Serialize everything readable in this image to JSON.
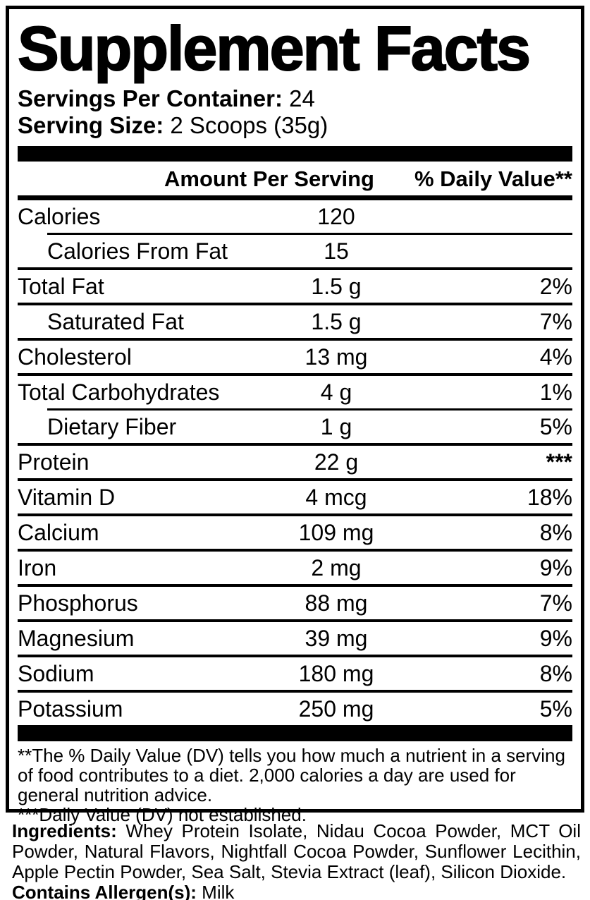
{
  "label": {
    "title": "Supplement Facts",
    "servings_per_container_label": "Servings Per Container:",
    "servings_per_container_value": "24",
    "serving_size_label": "Serving Size:",
    "serving_size_value": "2 Scoops (35g)",
    "header": {
      "amount": "Amount Per Serving",
      "daily_value": "% Daily Value**"
    },
    "rows": [
      {
        "name": "Calories",
        "amount": "120",
        "dv": "",
        "indent": false,
        "divider": "none",
        "dv_bold": false
      },
      {
        "name": "Calories From Fat",
        "amount": "15",
        "dv": "",
        "indent": true,
        "divider": "indented",
        "dv_bold": false
      },
      {
        "name": "Total Fat",
        "amount": "1.5 g",
        "dv": "2%",
        "indent": false,
        "divider": "full",
        "dv_bold": false
      },
      {
        "name": "Saturated Fat",
        "amount": "1.5 g",
        "dv": "7%",
        "indent": true,
        "divider": "full",
        "dv_bold": false
      },
      {
        "name": "Cholesterol",
        "amount": "13 mg",
        "dv": "4%",
        "indent": false,
        "divider": "full",
        "dv_bold": false
      },
      {
        "name": "Total Carbohydrates",
        "amount": "4 g",
        "dv": "1%",
        "indent": false,
        "divider": "full",
        "dv_bold": false
      },
      {
        "name": "Dietary Fiber",
        "amount": "1 g",
        "dv": "5%",
        "indent": true,
        "divider": "indented",
        "dv_bold": false
      },
      {
        "name": "Protein",
        "amount": "22 g",
        "dv": "***",
        "indent": false,
        "divider": "full",
        "dv_bold": true
      },
      {
        "name": "Vitamin D",
        "amount": "4 mcg",
        "dv": "18%",
        "indent": false,
        "divider": "full",
        "dv_bold": false
      },
      {
        "name": "Calcium",
        "amount": "109 mg",
        "dv": "8%",
        "indent": false,
        "divider": "full",
        "dv_bold": false
      },
      {
        "name": "Iron",
        "amount": "2 mg",
        "dv": "9%",
        "indent": false,
        "divider": "full",
        "dv_bold": false
      },
      {
        "name": "Phosphorus",
        "amount": "88 mg",
        "dv": "7%",
        "indent": false,
        "divider": "full",
        "dv_bold": false
      },
      {
        "name": "Magnesium",
        "amount": "39 mg",
        "dv": "9%",
        "indent": false,
        "divider": "full",
        "dv_bold": false
      },
      {
        "name": "Sodium",
        "amount": "180 mg",
        "dv": "8%",
        "indent": false,
        "divider": "full",
        "dv_bold": false
      },
      {
        "name": "Potassium",
        "amount": "250 mg",
        "dv": "5%",
        "indent": false,
        "divider": "full",
        "dv_bold": false
      }
    ],
    "footnotes": [
      "**The % Daily Value (DV) tells you how much a nutrient in a serving of food contributes to a diet. 2,000 calories a day are used for general nutrition advice.",
      "***Daily Value (DV) not established."
    ],
    "ingredients_label": "Ingredients:",
    "ingredients_text": " Whey Protein Isolate, Nidau Cocoa Powder, MCT Oil Powder, Natural Flavors, Nightfall Cocoa Powder, Sunflower Lecithin, Apple Pectin Powder, Sea Salt, Stevia Extract (leaf), Silicon Dioxide.",
    "allergen_label": "Contains Allergen(s):",
    "allergen_value": " Milk",
    "colors": {
      "ink": "#000000",
      "paper": "#ffffff"
    }
  }
}
